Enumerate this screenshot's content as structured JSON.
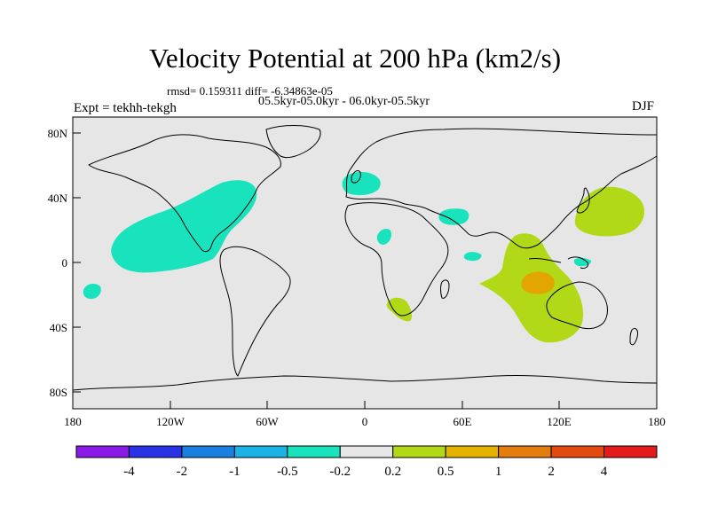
{
  "title": "Velocity Potential at 200 hPa (km2/s)",
  "stats": "rmsd= 0.159311 diff= -6.34863e-05",
  "period": "05.5kyr-05.0kyr - 06.0kyr-05.5kyr",
  "expt": "Expt = tekhh-tekgh",
  "season": "DJF",
  "axes": {
    "lon_labels": [
      "180",
      "120W",
      "60W",
      "0",
      "60E",
      "120E",
      "180"
    ],
    "lat_labels": [
      "80N",
      "40N",
      "0",
      "40S",
      "80S"
    ]
  },
  "colors": {
    "ocean": "#e6e6e6",
    "neg_small": "#19e3bd",
    "pos_small": "#b2d918",
    "pos_mid": "#e3a600"
  },
  "colorbar": {
    "levels": [
      "-4",
      "-2",
      "-1",
      "-0.5",
      "-0.2",
      "0.2",
      "0.5",
      "1",
      "2",
      "4"
    ],
    "colors": [
      "#8a1ae8",
      "#2a32e6",
      "#1a80e0",
      "#19b3e6",
      "#19e3bd",
      "#e6e6e6",
      "#b2d918",
      "#e3b300",
      "#e57c10",
      "#e34a10",
      "#e51a1a"
    ]
  }
}
